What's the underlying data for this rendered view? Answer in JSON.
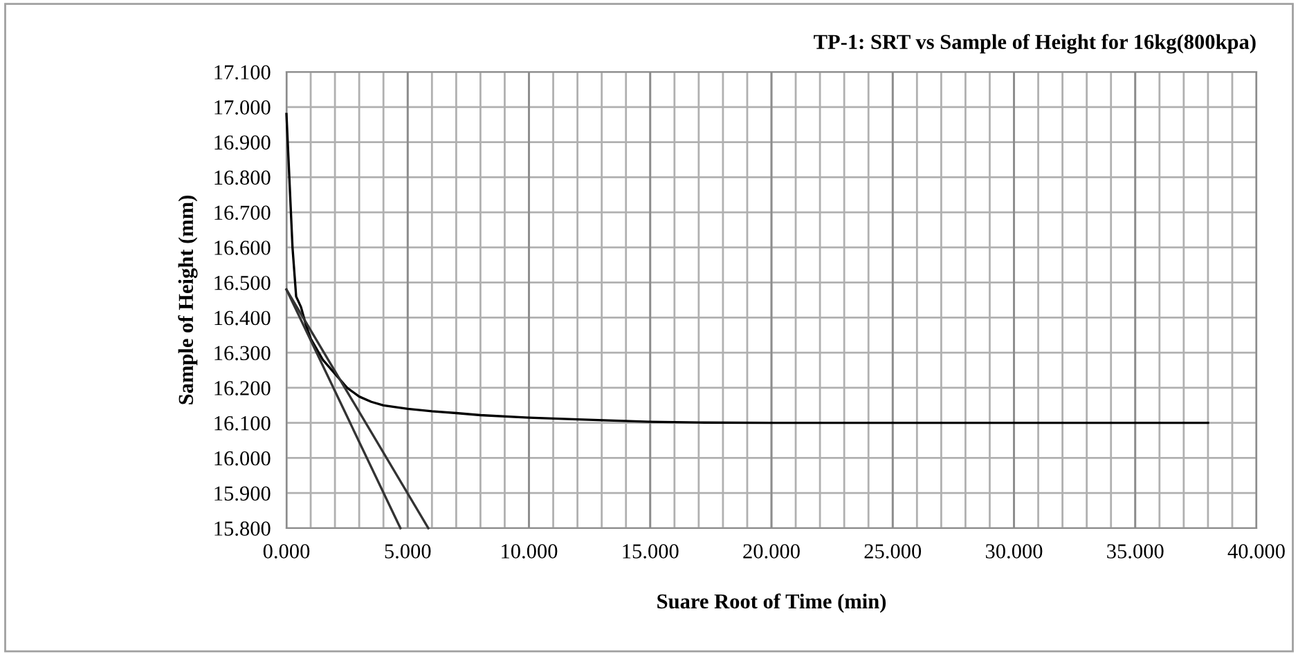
{
  "chart_data": {
    "type": "line",
    "title": "TP-1: SRT vs Sample of Height for 16kg(800kpa)",
    "xlabel": "Suare Root of Time (min)",
    "ylabel": "Sample of Height (mm)",
    "series": [
      {
        "color": "#000000",
        "x": [
          0,
          0.25,
          0.4,
          0.6,
          0.8,
          1,
          1.5,
          2,
          2.5,
          3,
          3.5,
          4,
          5,
          6,
          7,
          8,
          10,
          12,
          15,
          17,
          20,
          25,
          30,
          35,
          38
        ],
        "values": [
          16.98,
          16.6,
          16.46,
          16.43,
          16.38,
          16.34,
          16.28,
          16.24,
          16.2,
          16.175,
          16.16,
          16.15,
          16.14,
          16.133,
          16.128,
          16.122,
          16.115,
          16.11,
          16.103,
          16.101,
          16.1,
          16.1,
          16.1,
          16.1,
          16.1
        ]
      },
      {
        "color": "#333333",
        "x": [
          0,
          4.7
        ],
        "values": [
          16.48,
          15.8
        ]
      },
      {
        "color": "#333333",
        "x": [
          0,
          5.85
        ],
        "values": [
          16.48,
          15.8
        ]
      }
    ],
    "xlim": [
      0,
      40
    ],
    "ylim": [
      15.8,
      17.1
    ],
    "xticks": [
      {
        "value": 0,
        "label": "0.000"
      },
      {
        "value": 1,
        "label": null
      },
      {
        "value": 2,
        "label": null
      },
      {
        "value": 3,
        "label": null
      },
      {
        "value": 4,
        "label": null
      },
      {
        "value": 5,
        "label": "5.000"
      },
      {
        "value": 6,
        "label": null
      },
      {
        "value": 7,
        "label": null
      },
      {
        "value": 8,
        "label": null
      },
      {
        "value": 9,
        "label": null
      },
      {
        "value": 10,
        "label": "10.000"
      },
      {
        "value": 11,
        "label": null
      },
      {
        "value": 12,
        "label": null
      },
      {
        "value": 13,
        "label": null
      },
      {
        "value": 14,
        "label": null
      },
      {
        "value": 15,
        "label": "15.000"
      },
      {
        "value": 16,
        "label": null
      },
      {
        "value": 17,
        "label": null
      },
      {
        "value": 18,
        "label": null
      },
      {
        "value": 19,
        "label": null
      },
      {
        "value": 20,
        "label": "20.000"
      },
      {
        "value": 21,
        "label": null
      },
      {
        "value": 22,
        "label": null
      },
      {
        "value": 23,
        "label": null
      },
      {
        "value": 24,
        "label": null
      },
      {
        "value": 25,
        "label": "25.000"
      },
      {
        "value": 26,
        "label": null
      },
      {
        "value": 27,
        "label": null
      },
      {
        "value": 28,
        "label": null
      },
      {
        "value": 29,
        "label": null
      },
      {
        "value": 30,
        "label": "30.000"
      },
      {
        "value": 31,
        "label": null
      },
      {
        "value": 32,
        "label": null
      },
      {
        "value": 33,
        "label": null
      },
      {
        "value": 34,
        "label": null
      },
      {
        "value": 35,
        "label": "35.000"
      },
      {
        "value": 36,
        "label": null
      },
      {
        "value": 37,
        "label": null
      },
      {
        "value": 38,
        "label": null
      },
      {
        "value": 39,
        "label": null
      },
      {
        "value": 40,
        "label": "40.000"
      }
    ],
    "yticks": [
      {
        "value": 15.8,
        "label": "15.800"
      },
      {
        "value": 15.9,
        "label": "15.900"
      },
      {
        "value": 16.0,
        "label": "16.000"
      },
      {
        "value": 16.1,
        "label": "16.100"
      },
      {
        "value": 16.2,
        "label": "16.200"
      },
      {
        "value": 16.3,
        "label": "16.300"
      },
      {
        "value": 16.4,
        "label": "16.400"
      },
      {
        "value": 16.5,
        "label": "16.500"
      },
      {
        "value": 16.6,
        "label": "16.600"
      },
      {
        "value": 16.7,
        "label": "16.700"
      },
      {
        "value": 16.8,
        "label": "16.800"
      },
      {
        "value": 16.9,
        "label": "16.900"
      },
      {
        "value": 17.0,
        "label": "17.000"
      },
      {
        "value": 17.1,
        "label": "17.100"
      }
    ],
    "grid": true,
    "legend": false,
    "marker": "none",
    "line_style": "solid"
  }
}
